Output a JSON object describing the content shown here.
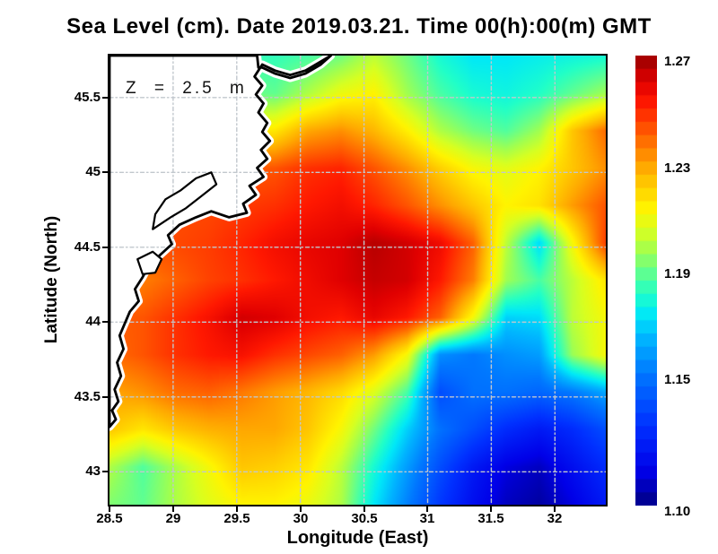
{
  "chart_data": {
    "type": "heatmap",
    "title": "Sea Level (cm). Date 2019.03.21. Time 00(h):00(m) GMT",
    "xlabel": "Longitude (East)",
    "ylabel": "Latitude (North)",
    "annotation": "Z = 2.5 m",
    "x_range": [
      28.5,
      32.4
    ],
    "y_range": [
      42.78,
      45.78
    ],
    "x_tick_values": [
      28.5,
      29,
      29.5,
      30,
      30.5,
      31,
      31.5,
      32
    ],
    "x_tick_labels": [
      "28.5",
      "29",
      "29.5",
      "30",
      "30.5",
      "31",
      "31.5",
      "32"
    ],
    "y_tick_values": [
      45.5,
      45,
      44.5,
      44,
      43.5,
      43
    ],
    "y_tick_labels": [
      "45.5",
      "45",
      "44.5",
      "44",
      "43.5",
      "43"
    ],
    "grid": {
      "show": true,
      "interval": 0.5,
      "color": "#c1c7cd",
      "dash": [
        4,
        3,
        1.5,
        3
      ]
    },
    "grid_lons": [
      28.5,
      28.76,
      29.02,
      29.28,
      29.54,
      29.8,
      30.06,
      30.32,
      30.58,
      30.84,
      31.1,
      31.36,
      31.62,
      31.88,
      32.14,
      32.4
    ],
    "grid_lats": [
      45.78,
      45.53,
      45.28,
      45.03,
      44.78,
      44.53,
      44.28,
      44.03,
      43.78,
      43.53,
      43.28,
      43.03,
      42.78
    ],
    "values": [
      [
        1.185,
        1.185,
        1.185,
        1.185,
        1.183,
        1.182,
        1.185,
        1.19,
        1.2,
        1.19,
        1.178,
        1.172,
        1.172,
        1.174,
        1.176,
        1.178
      ],
      [
        1.19,
        1.19,
        1.19,
        1.19,
        1.19,
        1.188,
        1.198,
        1.208,
        1.212,
        1.196,
        1.185,
        1.178,
        1.176,
        1.18,
        1.188,
        1.196
      ],
      [
        1.21,
        1.21,
        1.21,
        1.21,
        1.212,
        1.215,
        1.228,
        1.232,
        1.225,
        1.213,
        1.198,
        1.19,
        1.186,
        1.196,
        1.222,
        1.238
      ],
      [
        1.235,
        1.235,
        1.235,
        1.238,
        1.24,
        1.242,
        1.248,
        1.25,
        1.242,
        1.232,
        1.22,
        1.21,
        1.206,
        1.212,
        1.222,
        1.232
      ],
      [
        1.242,
        1.242,
        1.243,
        1.244,
        1.246,
        1.248,
        1.252,
        1.255,
        1.25,
        1.242,
        1.232,
        1.222,
        1.212,
        1.216,
        1.23,
        1.242
      ],
      [
        1.242,
        1.243,
        1.244,
        1.246,
        1.25,
        1.255,
        1.258,
        1.26,
        1.266,
        1.262,
        1.256,
        1.24,
        1.2,
        1.17,
        1.21,
        1.245
      ],
      [
        1.23,
        1.235,
        1.24,
        1.245,
        1.248,
        1.252,
        1.256,
        1.26,
        1.264,
        1.262,
        1.252,
        1.235,
        1.196,
        1.185,
        1.2,
        1.215
      ],
      [
        1.24,
        1.242,
        1.248,
        1.254,
        1.262,
        1.26,
        1.255,
        1.252,
        1.258,
        1.252,
        1.24,
        1.21,
        1.168,
        1.17,
        1.2,
        1.21
      ],
      [
        1.238,
        1.242,
        1.248,
        1.252,
        1.254,
        1.248,
        1.244,
        1.24,
        1.23,
        1.21,
        1.155,
        1.15,
        1.155,
        1.158,
        1.195,
        1.21
      ],
      [
        1.228,
        1.232,
        1.238,
        1.24,
        1.236,
        1.23,
        1.225,
        1.218,
        1.205,
        1.185,
        1.138,
        1.148,
        1.148,
        1.145,
        1.15,
        1.16
      ],
      [
        1.222,
        1.215,
        1.222,
        1.226,
        1.228,
        1.228,
        1.222,
        1.21,
        1.19,
        1.168,
        1.148,
        1.138,
        1.128,
        1.122,
        1.128,
        1.138
      ],
      [
        1.198,
        1.186,
        1.198,
        1.21,
        1.222,
        1.22,
        1.215,
        1.2,
        1.178,
        1.158,
        1.138,
        1.122,
        1.112,
        1.108,
        1.118,
        1.128
      ],
      [
        1.192,
        1.188,
        1.198,
        1.206,
        1.212,
        1.212,
        1.208,
        1.198,
        1.172,
        1.152,
        1.132,
        1.118,
        1.108,
        1.104,
        1.112,
        1.122
      ]
    ],
    "colormap_stops": [
      {
        "value": 1.1,
        "color": "#000082"
      },
      {
        "value": 1.113,
        "color": "#0000e8"
      },
      {
        "value": 1.13,
        "color": "#0030ff"
      },
      {
        "value": 1.15,
        "color": "#0078ff"
      },
      {
        "value": 1.163,
        "color": "#00b4ff"
      },
      {
        "value": 1.172,
        "color": "#00e8f8"
      },
      {
        "value": 1.18,
        "color": "#20ffc8"
      },
      {
        "value": 1.188,
        "color": "#60ff90"
      },
      {
        "value": 1.196,
        "color": "#a0ff50"
      },
      {
        "value": 1.204,
        "color": "#d8ff20"
      },
      {
        "value": 1.212,
        "color": "#fff400"
      },
      {
        "value": 1.22,
        "color": "#ffd000"
      },
      {
        "value": 1.228,
        "color": "#ffa800"
      },
      {
        "value": 1.236,
        "color": "#ff7800"
      },
      {
        "value": 1.244,
        "color": "#ff4800"
      },
      {
        "value": 1.252,
        "color": "#ff1800"
      },
      {
        "value": 1.26,
        "color": "#e00000"
      },
      {
        "value": 1.266,
        "color": "#b80000"
      },
      {
        "value": 1.27,
        "color": "#900000"
      }
    ],
    "colorbar": {
      "min": 1.1,
      "max": 1.27,
      "segment": 0.005,
      "tick_values": [
        1.27,
        1.23,
        1.19,
        1.15,
        1.1
      ],
      "tick_labels": [
        "1.27",
        "1.23",
        "1.19",
        "1.15",
        "1.10"
      ]
    },
    "map": {
      "land_color": "#ffffff",
      "coast_color": "#000000",
      "nodata_band_color": "#ffffff",
      "coastline": [
        [
          28.5,
          45.78
        ],
        [
          29.66,
          45.78
        ],
        [
          29.67,
          45.7
        ],
        [
          29.7,
          45.7
        ],
        [
          29.8,
          45.66
        ],
        [
          29.92,
          45.63
        ],
        [
          30.04,
          45.66
        ],
        [
          30.16,
          45.72
        ],
        [
          30.24,
          45.78
        ],
        [
          30.16,
          45.74
        ],
        [
          30.04,
          45.68
        ],
        [
          29.92,
          45.65
        ],
        [
          29.8,
          45.68
        ],
        [
          29.7,
          45.72
        ],
        [
          29.64,
          45.64
        ],
        [
          29.7,
          45.58
        ],
        [
          29.65,
          45.52
        ],
        [
          29.71,
          45.46
        ],
        [
          29.67,
          45.4
        ],
        [
          29.74,
          45.33
        ],
        [
          29.7,
          45.27
        ],
        [
          29.76,
          45.21
        ],
        [
          29.69,
          45.15
        ],
        [
          29.74,
          45.09
        ],
        [
          29.66,
          45.03
        ],
        [
          29.71,
          44.97
        ],
        [
          29.6,
          44.91
        ],
        [
          29.65,
          44.85
        ],
        [
          29.55,
          44.79
        ],
        [
          29.58,
          44.73
        ],
        [
          29.44,
          44.7
        ],
        [
          29.3,
          44.74
        ],
        [
          29.18,
          44.7
        ],
        [
          29.05,
          44.65
        ],
        [
          28.96,
          44.58
        ],
        [
          28.99,
          44.52
        ],
        [
          28.9,
          44.45
        ],
        [
          28.81,
          44.38
        ],
        [
          28.76,
          44.3
        ],
        [
          28.7,
          44.22
        ],
        [
          28.73,
          44.14
        ],
        [
          28.66,
          44.07
        ],
        [
          28.62,
          43.99
        ],
        [
          28.58,
          43.91
        ],
        [
          28.61,
          43.82
        ],
        [
          28.56,
          43.73
        ],
        [
          28.59,
          43.64
        ],
        [
          28.54,
          43.55
        ],
        [
          28.57,
          43.47
        ],
        [
          28.52,
          43.41
        ],
        [
          28.55,
          43.35
        ],
        [
          28.5,
          43.3
        ]
      ],
      "lagoons": [
        [
          [
            28.84,
            44.62
          ],
          [
            28.98,
            44.7
          ],
          [
            29.1,
            44.76
          ],
          [
            29.22,
            44.84
          ],
          [
            29.34,
            44.92
          ],
          [
            29.3,
            45.0
          ],
          [
            29.18,
            44.96
          ],
          [
            29.06,
            44.88
          ],
          [
            28.94,
            44.82
          ],
          [
            28.86,
            44.72
          ]
        ],
        [
          [
            28.72,
            44.42
          ],
          [
            28.84,
            44.47
          ],
          [
            28.91,
            44.42
          ],
          [
            28.86,
            44.33
          ],
          [
            28.76,
            44.32
          ]
        ]
      ]
    }
  },
  "colors": {
    "background": "#ffffff",
    "frame": "#000000",
    "tick": "#000000",
    "text": "#000000"
  }
}
